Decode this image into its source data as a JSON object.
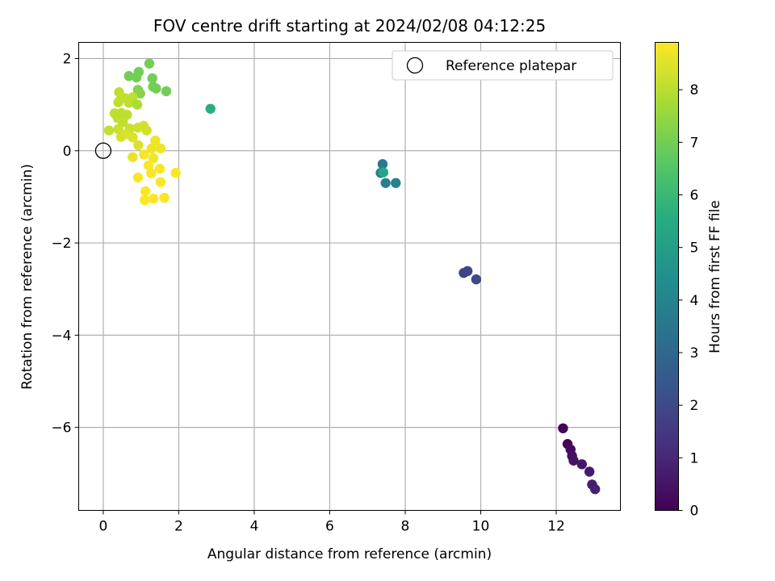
{
  "chart_data": {
    "type": "scatter",
    "title": "FOV centre drift starting at 2024/02/08 04:12:25",
    "xlabel": "Angular distance from reference (arcmin)",
    "ylabel": "Rotation from reference (arcmin)",
    "xlim": [
      -0.65,
      13.7
    ],
    "ylim": [
      -7.8,
      2.35
    ],
    "xticks": [
      0,
      2,
      4,
      6,
      8,
      10,
      12
    ],
    "yticks": [
      2,
      0,
      -2,
      -4,
      -6
    ],
    "grid": true,
    "legend": {
      "location": "top-right",
      "entries": [
        "Reference platepar"
      ]
    },
    "reference_point": {
      "x": 0,
      "y": 0,
      "label": "Reference platepar"
    },
    "colorbar": {
      "label": "Hours from first FF file",
      "colormap": "viridis",
      "range": [
        0,
        8.9
      ],
      "ticks": [
        0,
        1,
        2,
        3,
        4,
        5,
        6,
        7,
        8
      ]
    },
    "points": [
      {
        "x": 12.18,
        "y": -6.02,
        "c": 0.05
      },
      {
        "x": 12.3,
        "y": -6.36,
        "c": 0.15
      },
      {
        "x": 12.38,
        "y": -6.48,
        "c": 0.25
      },
      {
        "x": 12.42,
        "y": -6.62,
        "c": 0.35
      },
      {
        "x": 12.46,
        "y": -6.72,
        "c": 0.45
      },
      {
        "x": 12.68,
        "y": -6.8,
        "c": 0.55
      },
      {
        "x": 12.88,
        "y": -6.96,
        "c": 0.65
      },
      {
        "x": 12.95,
        "y": -7.24,
        "c": 0.75
      },
      {
        "x": 13.03,
        "y": -7.34,
        "c": 0.85
      },
      {
        "x": 9.55,
        "y": -2.65,
        "c": 1.75
      },
      {
        "x": 9.65,
        "y": -2.61,
        "c": 1.9
      },
      {
        "x": 9.88,
        "y": -2.79,
        "c": 2.05
      },
      {
        "x": 7.4,
        "y": -0.29,
        "c": 3.6
      },
      {
        "x": 7.35,
        "y": -0.48,
        "c": 3.75
      },
      {
        "x": 7.48,
        "y": -0.7,
        "c": 3.85
      },
      {
        "x": 7.75,
        "y": -0.7,
        "c": 3.95
      },
      {
        "x": 7.42,
        "y": -0.47,
        "c": 5.3
      },
      {
        "x": 2.84,
        "y": 0.91,
        "c": 5.6
      },
      {
        "x": 1.22,
        "y": 1.89,
        "c": 7.0
      },
      {
        "x": 0.94,
        "y": 1.71,
        "c": 7.0
      },
      {
        "x": 0.68,
        "y": 1.62,
        "c": 7.0
      },
      {
        "x": 1.3,
        "y": 1.57,
        "c": 7.0
      },
      {
        "x": 0.88,
        "y": 1.59,
        "c": 7.0
      },
      {
        "x": 1.32,
        "y": 1.39,
        "c": 7.0
      },
      {
        "x": 1.4,
        "y": 1.35,
        "c": 7.0
      },
      {
        "x": 1.67,
        "y": 1.29,
        "c": 7.0
      },
      {
        "x": 0.92,
        "y": 1.32,
        "c": 7.2
      },
      {
        "x": 0.98,
        "y": 1.24,
        "c": 7.3
      },
      {
        "x": 0.42,
        "y": 1.27,
        "c": 8.05
      },
      {
        "x": 0.48,
        "y": 1.17,
        "c": 8.05
      },
      {
        "x": 0.58,
        "y": 1.14,
        "c": 8.05
      },
      {
        "x": 0.78,
        "y": 1.16,
        "c": 8.05
      },
      {
        "x": 0.4,
        "y": 1.05,
        "c": 8.05
      },
      {
        "x": 0.68,
        "y": 1.04,
        "c": 8.05
      },
      {
        "x": 0.9,
        "y": 1.0,
        "c": 7.8
      },
      {
        "x": 0.3,
        "y": 0.81,
        "c": 8.05
      },
      {
        "x": 0.48,
        "y": 0.82,
        "c": 8.05
      },
      {
        "x": 0.38,
        "y": 0.71,
        "c": 8.05
      },
      {
        "x": 0.63,
        "y": 0.78,
        "c": 8.05
      },
      {
        "x": 0.52,
        "y": 0.62,
        "c": 8.1
      },
      {
        "x": 0.15,
        "y": 0.44,
        "c": 8.1
      },
      {
        "x": 0.4,
        "y": 0.47,
        "c": 8.2
      },
      {
        "x": 0.7,
        "y": 0.48,
        "c": 8.2
      },
      {
        "x": 0.92,
        "y": 0.5,
        "c": 8.25
      },
      {
        "x": 1.07,
        "y": 0.54,
        "c": 8.3
      },
      {
        "x": 1.15,
        "y": 0.44,
        "c": 8.3
      },
      {
        "x": 0.47,
        "y": 0.3,
        "c": 8.35
      },
      {
        "x": 0.6,
        "y": 0.36,
        "c": 8.4
      },
      {
        "x": 0.78,
        "y": 0.29,
        "c": 8.4
      },
      {
        "x": 0.93,
        "y": 0.12,
        "c": 8.45
      },
      {
        "x": 1.38,
        "y": 0.22,
        "c": 8.7
      },
      {
        "x": 1.28,
        "y": 0.05,
        "c": 8.7
      },
      {
        "x": 1.52,
        "y": 0.05,
        "c": 8.7
      },
      {
        "x": 1.08,
        "y": -0.08,
        "c": 8.8
      },
      {
        "x": 0.78,
        "y": -0.14,
        "c": 8.6
      },
      {
        "x": 1.33,
        "y": -0.16,
        "c": 8.75
      },
      {
        "x": 1.2,
        "y": -0.32,
        "c": 8.85
      },
      {
        "x": 1.5,
        "y": -0.39,
        "c": 8.85
      },
      {
        "x": 1.27,
        "y": -0.49,
        "c": 8.85
      },
      {
        "x": 1.92,
        "y": -0.48,
        "c": 8.85
      },
      {
        "x": 0.92,
        "y": -0.58,
        "c": 8.85
      },
      {
        "x": 1.52,
        "y": -0.68,
        "c": 8.85
      },
      {
        "x": 1.12,
        "y": -0.88,
        "c": 8.85
      },
      {
        "x": 1.62,
        "y": -1.02,
        "c": 8.85
      },
      {
        "x": 1.33,
        "y": -1.04,
        "c": 8.85
      },
      {
        "x": 1.1,
        "y": -1.07,
        "c": 8.85
      }
    ]
  }
}
